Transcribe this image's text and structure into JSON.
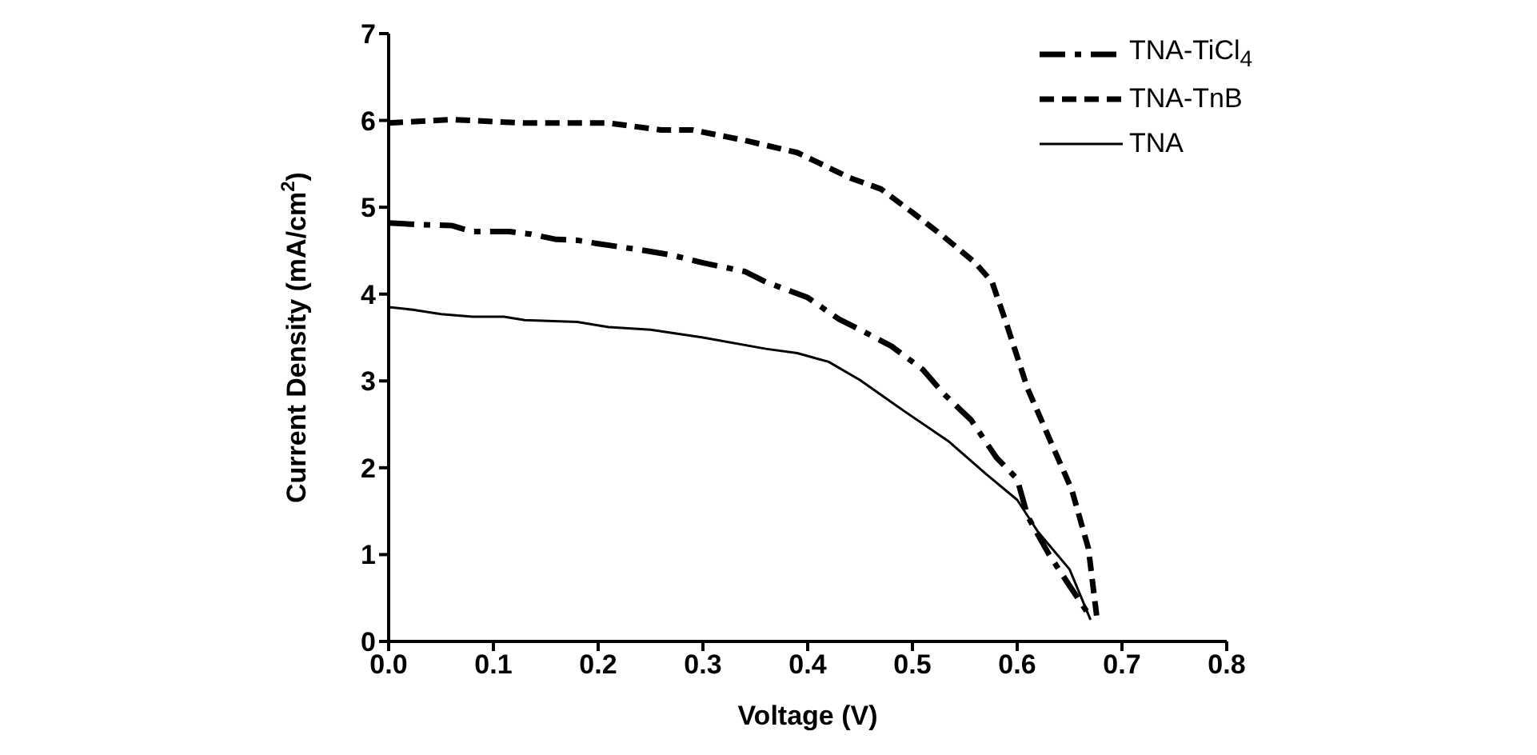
{
  "chart_data": {
    "type": "line",
    "xlabel": "Voltage (V)",
    "ylabel": "Current Density (mA/cm$^{2}$)",
    "xlim": [
      0,
      0.8
    ],
    "xticks": [
      {
        "value": 0,
        "label": "0.0"
      },
      {
        "value": 0.1,
        "label": "0.1"
      },
      {
        "value": 0.2,
        "label": "0.2"
      },
      {
        "value": 0.3,
        "label": "0.3"
      },
      {
        "value": 0.4,
        "label": "0.4"
      },
      {
        "value": 0.5,
        "label": "0.5"
      },
      {
        "value": 0.6,
        "label": "0.6"
      },
      {
        "value": 0.7,
        "label": "0.7"
      },
      {
        "value": 0.8,
        "label": "0.8"
      }
    ],
    "ylim": [
      0,
      7
    ],
    "yticks": [
      0,
      1,
      2,
      3,
      4,
      5,
      6,
      7
    ],
    "grid": false,
    "legend": "top right",
    "marker": "none",
    "series": [
      {
        "name": "TNA-TiCl$_{4}$",
        "color": "#000000",
        "line_style": "dashdot",
        "x": [
          0,
          0.03,
          0.06,
          0.08,
          0.115,
          0.136,
          0.16,
          0.18,
          0.2,
          0.24,
          0.27,
          0.3,
          0.34,
          0.36,
          0.38,
          0.4,
          0.43,
          0.45,
          0.48,
          0.51,
          0.53,
          0.556,
          0.58,
          0.6,
          0.61,
          0.63,
          0.65,
          0.67
        ],
        "values": [
          4.82,
          4.8,
          4.79,
          4.72,
          4.72,
          4.69,
          4.63,
          4.62,
          4.58,
          4.51,
          4.45,
          4.36,
          4.26,
          4.14,
          4.05,
          3.96,
          3.71,
          3.59,
          3.4,
          3.13,
          2.85,
          2.55,
          2.12,
          1.87,
          1.44,
          1.01,
          0.64,
          0.28
        ]
      },
      {
        "name": "TNA-TnB",
        "color": "#000000",
        "line_style": "dashed",
        "x": [
          0,
          0.06,
          0.13,
          0.21,
          0.26,
          0.29,
          0.34,
          0.39,
          0.44,
          0.47,
          0.5,
          0.53,
          0.56,
          0.576,
          0.59,
          0.61,
          0.632,
          0.652,
          0.668,
          0.676
        ],
        "values": [
          5.97,
          6.01,
          5.97,
          5.97,
          5.89,
          5.89,
          5.77,
          5.63,
          5.34,
          5.21,
          4.94,
          4.66,
          4.36,
          4.14,
          3.65,
          2.91,
          2.3,
          1.75,
          1.07,
          0.28
        ]
      },
      {
        "name": "TNA",
        "color": "#000000",
        "line_style": "solid",
        "x": [
          0,
          0.023,
          0.05,
          0.08,
          0.11,
          0.13,
          0.18,
          0.21,
          0.25,
          0.3,
          0.36,
          0.39,
          0.42,
          0.45,
          0.49,
          0.535,
          0.57,
          0.6,
          0.62,
          0.65,
          0.67
        ],
        "values": [
          3.85,
          3.82,
          3.77,
          3.74,
          3.74,
          3.7,
          3.68,
          3.62,
          3.59,
          3.5,
          3.37,
          3.32,
          3.22,
          3.01,
          2.67,
          2.3,
          1.93,
          1.63,
          1.26,
          0.83,
          0.25
        ]
      }
    ]
  }
}
